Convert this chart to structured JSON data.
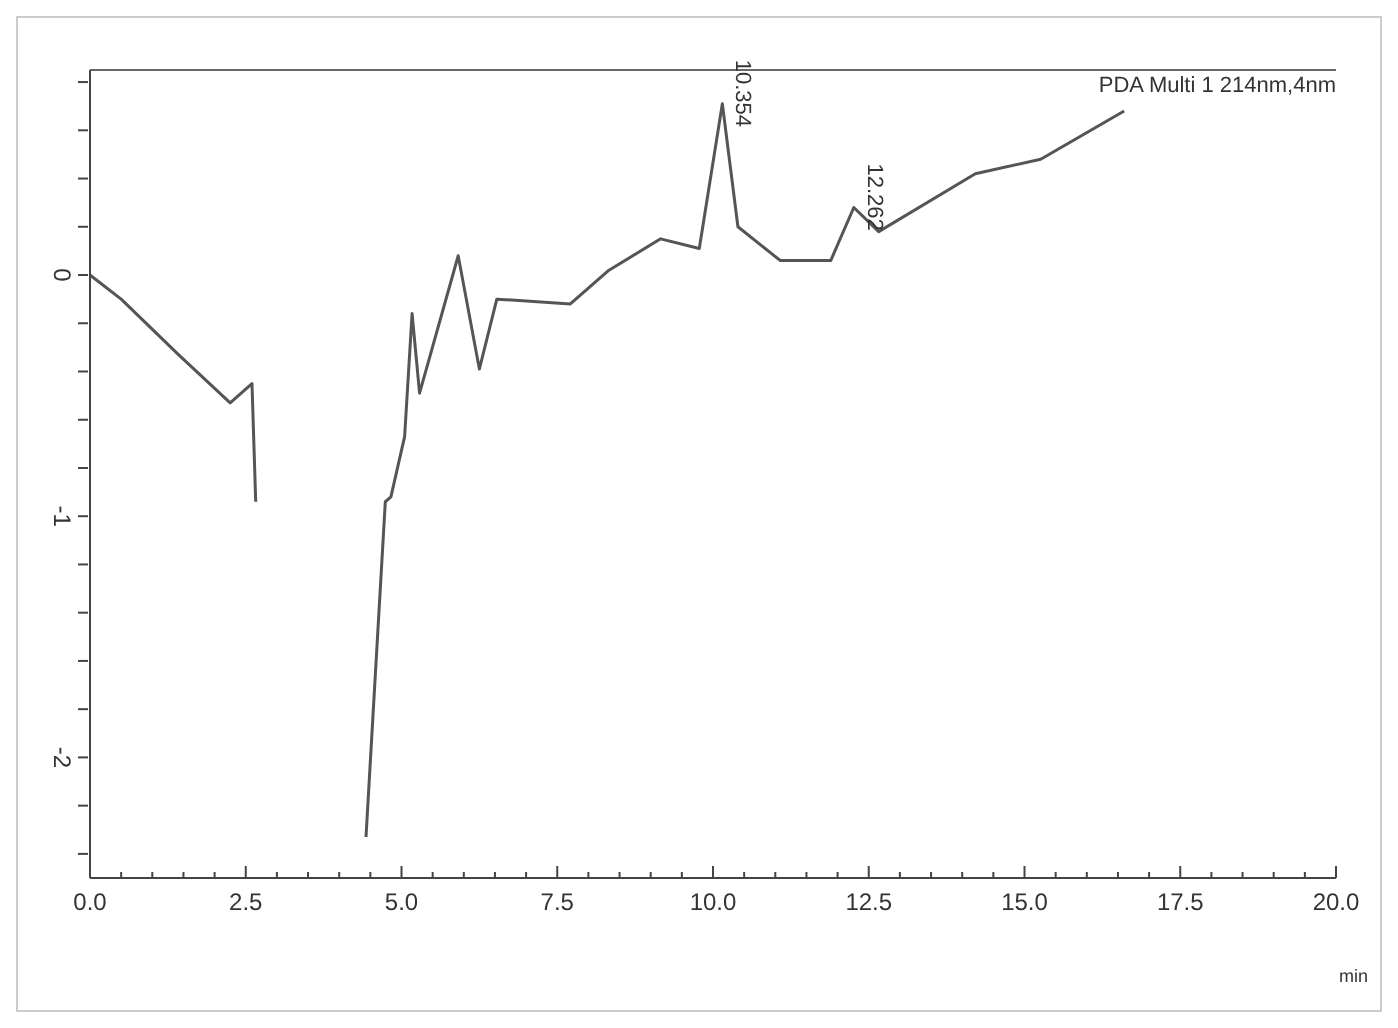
{
  "chart_data": {
    "type": "line",
    "xlabel": "min",
    "x": [
      0,
      0.5,
      1.42,
      2.25,
      2.6,
      2.66,
      2.79,
      3.45,
      4.12,
      4.43,
      4.74,
      4.83,
      5.05,
      5.17,
      5.29,
      5.91,
      6.25,
      6.53,
      7.71,
      8.33,
      9.16,
      9.78,
      10.15,
      10.4,
      11.08,
      11.89,
      12.26,
      12.66,
      14.21,
      15.26,
      16.6
    ],
    "series": [
      {
        "color": "#555555",
        "values": [
          0,
          -0.1,
          -0.33,
          -0.53,
          -0.45,
          -0.94,
          null,
          null,
          null,
          -2.33,
          -0.94,
          -0.92,
          -0.67,
          -0.16,
          -0.49,
          0.08,
          -0.39,
          -0.1,
          -0.12,
          0.02,
          0.15,
          0.11,
          0.71,
          0.2,
          0.06,
          0.06,
          0.28,
          0.18,
          0.42,
          0.48,
          0.68
        ]
      }
    ],
    "xlim": [
      0,
      20
    ],
    "xticks": [
      {
        "value": 0,
        "label": "0.0"
      },
      {
        "value": 0.5,
        "label": null
      },
      {
        "value": 1,
        "label": null
      },
      {
        "value": 1.5,
        "label": null
      },
      {
        "value": 2,
        "label": null
      },
      2.5,
      {
        "value": 3,
        "label": null
      },
      {
        "value": 3.5,
        "label": null
      },
      {
        "value": 4,
        "label": null
      },
      {
        "value": 4.5,
        "label": null
      },
      {
        "value": 5,
        "label": "5.0"
      },
      {
        "value": 5.5,
        "label": null
      },
      {
        "value": 6,
        "label": null
      },
      {
        "value": 6.5,
        "label": null
      },
      {
        "value": 7,
        "label": null
      },
      7.5,
      {
        "value": 8,
        "label": null
      },
      {
        "value": 8.5,
        "label": null
      },
      {
        "value": 9,
        "label": null
      },
      {
        "value": 9.5,
        "label": null
      },
      {
        "value": 10,
        "label": "10.0"
      },
      {
        "value": 10.5,
        "label": null
      },
      {
        "value": 11,
        "label": null
      },
      {
        "value": 11.5,
        "label": null
      },
      {
        "value": 12,
        "label": null
      },
      12.5,
      {
        "value": 13,
        "label": null
      },
      {
        "value": 13.5,
        "label": null
      },
      {
        "value": 14,
        "label": null
      },
      {
        "value": 14.5,
        "label": null
      },
      {
        "value": 15,
        "label": "15.0"
      },
      {
        "value": 15.5,
        "label": null
      },
      {
        "value": 16,
        "label": null
      },
      {
        "value": 16.5,
        "label": null
      },
      {
        "value": 17,
        "label": null
      },
      17.5,
      {
        "value": 18,
        "label": null
      },
      {
        "value": 18.5,
        "label": null
      },
      {
        "value": 19,
        "label": null
      },
      {
        "value": 19.5,
        "label": null
      },
      {
        "value": 20,
        "label": "20.0"
      }
    ],
    "ylim": [
      -2.5,
      0.85
    ],
    "yticks": [
      {
        "value": -2.4,
        "label": null
      },
      {
        "value": -2.2,
        "label": null
      },
      -2,
      {
        "value": -1.8,
        "label": null
      },
      {
        "value": -1.6,
        "label": null
      },
      {
        "value": -1.4,
        "label": null
      },
      {
        "value": -1.2,
        "label": null
      },
      -1,
      {
        "value": -0.8,
        "label": null
      },
      {
        "value": -0.6,
        "label": null
      },
      {
        "value": -0.4,
        "label": null
      },
      {
        "value": -0.2,
        "label": null
      },
      0,
      {
        "value": 0.2,
        "label": null
      },
      {
        "value": 0.4,
        "label": null
      },
      {
        "value": 0.6,
        "label": null
      },
      {
        "value": 0.8,
        "label": null
      }
    ],
    "annotations": [
      {
        "text": "10.354",
        "x": 10.15,
        "y": 0.71
      },
      {
        "text": "12.262",
        "x": 12.26,
        "y": 0.28
      },
      "PDA Multi 1 214nm,4nm"
    ],
    "grid": false,
    "legend": false,
    "marker": "none",
    "line_style": "solid"
  }
}
